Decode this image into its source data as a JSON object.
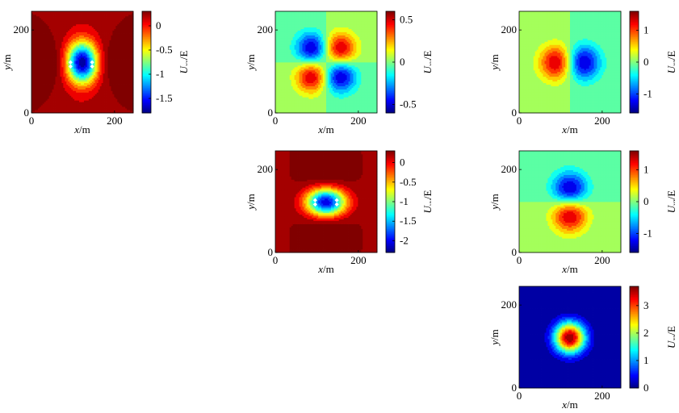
{
  "chart_data": [
    {
      "id": "uxx",
      "type": "heatmap",
      "field": "xx",
      "xlabel_var": "x",
      "xlabel_unit": "/m",
      "ylabel_var": "y",
      "ylabel_unit": "/m",
      "xlim": [
        0,
        245
      ],
      "ylim": [
        0,
        245
      ],
      "xticks": [
        0,
        200
      ],
      "yticks": [
        0,
        200
      ],
      "colorbar": {
        "label_var": "U",
        "label_sub": "xx",
        "label_unit": "/E",
        "min": -1.8,
        "max": 0.3,
        "ticks": [
          0,
          -0.5,
          -1,
          -1.5
        ]
      },
      "markers": [
        [
          94,
          122
        ],
        [
          94,
          112
        ],
        [
          146,
          122
        ],
        [
          146,
          112
        ]
      ]
    },
    {
      "id": "uxy",
      "type": "heatmap",
      "field": "xy",
      "xlabel_var": "x",
      "xlabel_unit": "/m",
      "ylabel_var": "y",
      "ylabel_unit": "/m",
      "xlim": [
        0,
        245
      ],
      "ylim": [
        0,
        245
      ],
      "xticks": [
        0,
        200
      ],
      "yticks": [
        0,
        200
      ],
      "colorbar": {
        "label_var": "U",
        "label_sub": "xy",
        "label_unit": "/E",
        "min": -0.6,
        "max": 0.6,
        "ticks": [
          0.5,
          0,
          -0.5
        ]
      },
      "markers": []
    },
    {
      "id": "uxz",
      "type": "heatmap",
      "field": "xz",
      "xlabel_var": "x",
      "xlabel_unit": "/m",
      "ylabel_var": "y",
      "ylabel_unit": "/m",
      "xlim": [
        0,
        245
      ],
      "ylim": [
        0,
        245
      ],
      "xticks": [
        0,
        200
      ],
      "yticks": [
        0,
        200
      ],
      "colorbar": {
        "label_var": "U",
        "label_sub": "xz",
        "label_unit": "/E",
        "min": -1.6,
        "max": 1.6,
        "ticks": [
          1,
          0,
          -1
        ]
      },
      "markers": []
    },
    {
      "id": "uyy",
      "type": "heatmap",
      "field": "yy",
      "xlabel_var": "x",
      "xlabel_unit": "/m",
      "ylabel_var": "y",
      "ylabel_unit": "/m",
      "xlim": [
        0,
        245
      ],
      "ylim": [
        0,
        245
      ],
      "xticks": [
        0,
        200
      ],
      "yticks": [
        0,
        200
      ],
      "colorbar": {
        "label_var": "U",
        "label_sub": "yy",
        "label_unit": "/E",
        "min": -2.3,
        "max": 0.3,
        "ticks": [
          0,
          -0.5,
          -1,
          -1.5,
          -2
        ]
      },
      "markers": [
        [
          96,
          126
        ],
        [
          96,
          116
        ],
        [
          148,
          126
        ],
        [
          148,
          116
        ]
      ]
    },
    {
      "id": "uyz",
      "type": "heatmap",
      "field": "yz",
      "xlabel_var": "x",
      "xlabel_unit": "/m",
      "ylabel_var": "y",
      "ylabel_unit": "/m",
      "xlim": [
        0,
        245
      ],
      "ylim": [
        0,
        245
      ],
      "xticks": [
        0,
        200
      ],
      "yticks": [
        0,
        200
      ],
      "colorbar": {
        "label_var": "U",
        "label_sub": "yz",
        "label_unit": "/E",
        "min": -1.6,
        "max": 1.6,
        "ticks": [
          1,
          0,
          -1
        ]
      },
      "markers": []
    },
    {
      "id": "uzz",
      "type": "heatmap",
      "field": "zz",
      "xlabel_var": "x",
      "xlabel_unit": "/m",
      "ylabel_var": "y",
      "ylabel_unit": "/m",
      "xlim": [
        0,
        245
      ],
      "ylim": [
        0,
        245
      ],
      "xticks": [
        0,
        200
      ],
      "yticks": [
        0,
        200
      ],
      "colorbar": {
        "label_var": "U",
        "label_sub": "zz",
        "label_unit": "/E",
        "min": 0,
        "max": 3.7,
        "ticks": [
          3,
          2,
          1,
          0
        ]
      },
      "markers": []
    }
  ]
}
